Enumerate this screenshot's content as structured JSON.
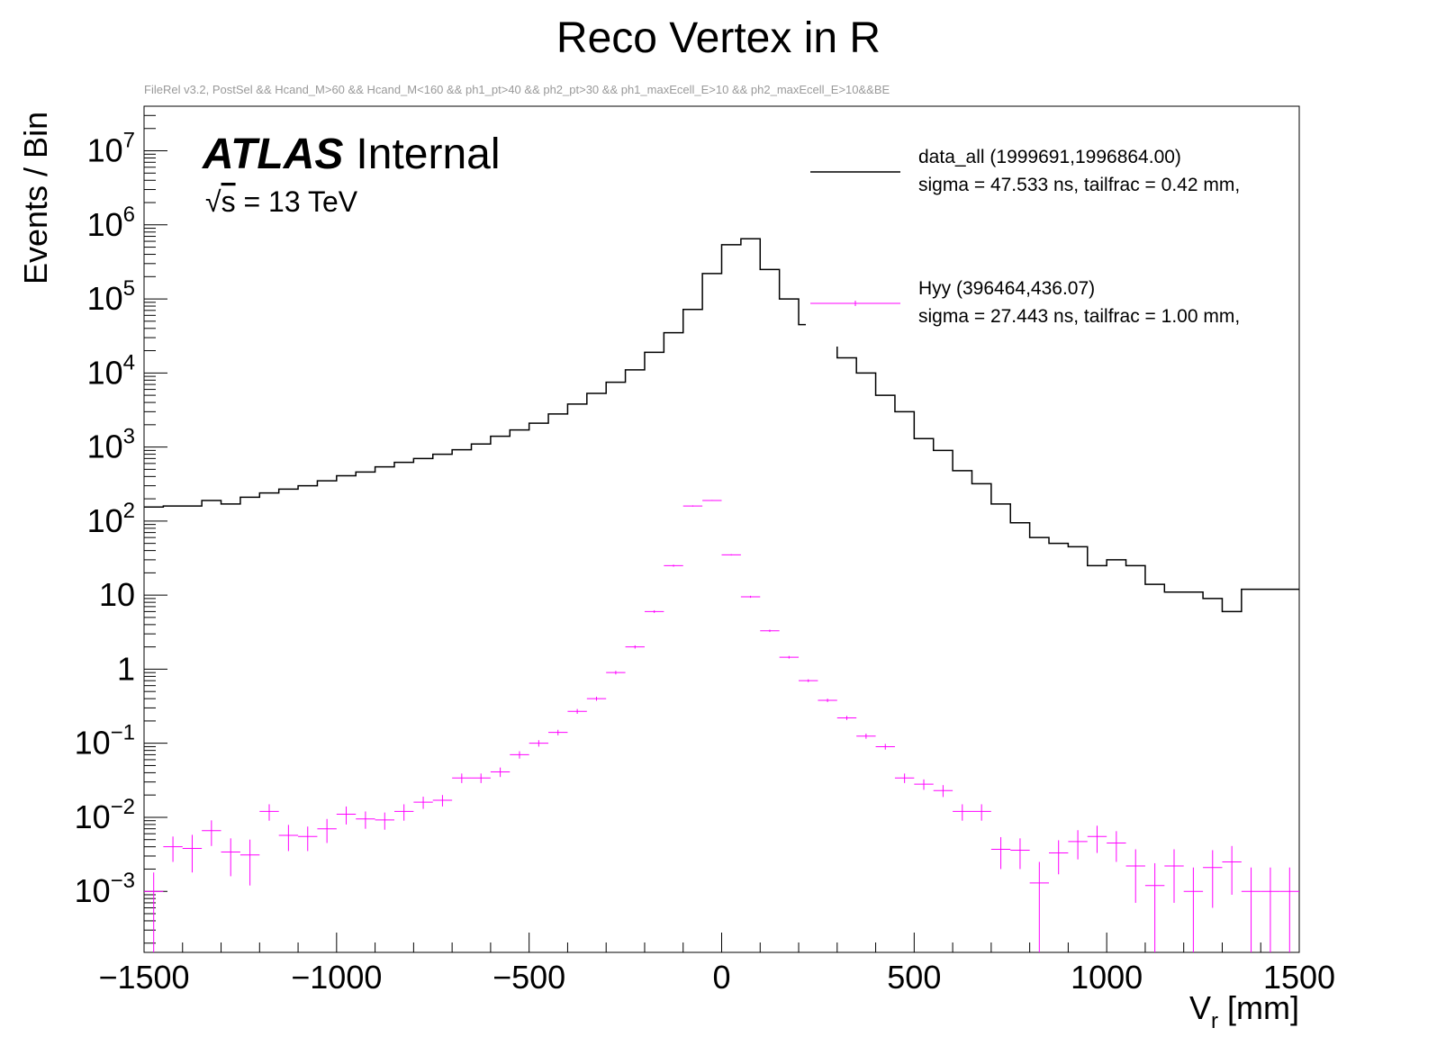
{
  "chart_data": {
    "type": "histogram",
    "title": "Reco Vertex in R",
    "subtitle": "FileRel v3.2, PostSel && Hcand_M>60 && Hcand_M<160 && ph1_pt>40 && ph2_pt>30 && ph1_maxEcell_E>10 && ph2_maxEcell_E>10&&BE",
    "xlabel_main": "V",
    "xlabel_sub": "r",
    "xlabel_unit": " [mm]",
    "ylabel": "Events / Bin",
    "xlim": [
      -1500,
      1500
    ],
    "ylim": [
      0.00015,
      40000000
    ],
    "yscale": "log",
    "x_ticks": [
      -1500,
      -1000,
      -500,
      0,
      500,
      1000,
      1500
    ],
    "x_tick_labels": [
      "−1500",
      "−1000",
      "−500",
      "0",
      "500",
      "1000",
      "1500"
    ],
    "y_ticks": [
      {
        "value": 0.001,
        "base": "10",
        "exp": "−3"
      },
      {
        "value": 0.01,
        "base": "10",
        "exp": "−2"
      },
      {
        "value": 0.1,
        "base": "10",
        "exp": "−1"
      },
      {
        "value": 1,
        "base": "1",
        "exp": ""
      },
      {
        "value": 10,
        "base": "10",
        "exp": ""
      },
      {
        "value": 100,
        "base": "10",
        "exp": "2"
      },
      {
        "value": 1000,
        "base": "10",
        "exp": "3"
      },
      {
        "value": 10000,
        "base": "10",
        "exp": "4"
      },
      {
        "value": 100000,
        "base": "10",
        "exp": "5"
      },
      {
        "value": 1000000,
        "base": "10",
        "exp": "6"
      },
      {
        "value": 10000000,
        "base": "10",
        "exp": "7"
      }
    ],
    "bin_edges_start": -1500,
    "bin_width": 50,
    "series": [
      {
        "name": "data_all",
        "style": "step",
        "color": "#000000",
        "values": [
          155,
          160,
          160,
          190,
          170,
          210,
          240,
          270,
          300,
          350,
          410,
          460,
          540,
          620,
          700,
          800,
          920,
          1100,
          1400,
          1700,
          2100,
          2800,
          3800,
          5300,
          7500,
          11000,
          19000,
          35000,
          72000,
          220000,
          540000,
          650000,
          250000,
          100000,
          45000,
          25000,
          16000,
          10000,
          5000,
          3000,
          1300,
          900,
          480,
          320,
          170,
          95,
          60,
          50,
          45,
          25,
          30,
          25,
          14,
          11,
          11,
          9,
          6,
          12,
          12,
          12
        ]
      },
      {
        "name": "Hyy",
        "style": "errorbar",
        "color": "#ff00ff",
        "values": [
          0.001,
          0.004,
          0.0038,
          0.0066,
          0.0034,
          0.0031,
          0.012,
          0.0057,
          0.0055,
          0.007,
          0.011,
          0.0095,
          0.0092,
          0.012,
          0.016,
          0.017,
          0.034,
          0.034,
          0.041,
          0.07,
          0.1,
          0.14,
          0.27,
          0.4,
          0.9,
          2.0,
          6.0,
          25,
          160,
          190,
          35,
          9.5,
          3.3,
          1.45,
          0.7,
          0.38,
          0.22,
          0.125,
          0.09,
          0.034,
          0.028,
          0.023,
          0.012,
          0.012,
          0.0037,
          0.0036,
          0.0013,
          0.0033,
          0.0047,
          0.0055,
          0.0045,
          0.0022,
          0.0012,
          0.0022,
          0.001,
          0.0021,
          0.0025,
          0.001,
          0.001,
          0.001
        ],
        "err_hi": [
          0.0008,
          0.0015,
          0.002,
          0.0025,
          0.0018,
          0.0019,
          0.003,
          0.0022,
          0.002,
          0.0025,
          0.003,
          0.0025,
          0.0024,
          0.003,
          0.003,
          0.003,
          0.005,
          0.005,
          0.006,
          0.008,
          0.01,
          0.012,
          0.02,
          0.025,
          0.05,
          0.1,
          0.25,
          0.8,
          3,
          3,
          0.7,
          0.3,
          0.12,
          0.06,
          0.03,
          0.02,
          0.014,
          0.01,
          0.008,
          0.005,
          0.0045,
          0.0042,
          0.003,
          0.003,
          0.0017,
          0.0016,
          0.0012,
          0.0016,
          0.002,
          0.0022,
          0.002,
          0.0015,
          0.0012,
          0.0015,
          0.0011,
          0.0015,
          0.0016,
          0.0011,
          0.0011,
          0.0011
        ],
        "err_lo": [
          0.00095,
          0.0015,
          0.002,
          0.0025,
          0.0018,
          0.0019,
          0.003,
          0.0022,
          0.002,
          0.0025,
          0.003,
          0.0025,
          0.0024,
          0.003,
          0.003,
          0.003,
          0.005,
          0.005,
          0.006,
          0.008,
          0.01,
          0.012,
          0.02,
          0.025,
          0.05,
          0.1,
          0.25,
          0.8,
          3,
          3,
          0.7,
          0.3,
          0.12,
          0.06,
          0.03,
          0.02,
          0.014,
          0.01,
          0.008,
          0.005,
          0.0045,
          0.0042,
          0.003,
          0.003,
          0.0017,
          0.0016,
          0.00125,
          0.0016,
          0.002,
          0.0022,
          0.002,
          0.0015,
          0.00115,
          0.0015,
          0.00095,
          0.0015,
          0.0016,
          0.00095,
          0.00095,
          0.00095
        ]
      }
    ],
    "annotations": {
      "atlas_label": "ATLAS",
      "atlas_status": "Internal",
      "energy_sqrt": "√",
      "energy_s": "s",
      "energy_rest": " = 13 TeV"
    },
    "legend": [
      {
        "line1": "data_all  (1999691,1996864.00)",
        "line2": "sigma = 47.533 ns, tailfrac = 0.42 mm,",
        "color": "#000000"
      },
      {
        "line1": "Hyy  (396464,436.07)",
        "line2": "sigma = 27.443 ns, tailfrac = 1.00 mm,",
        "color": "#ff00ff"
      }
    ],
    "legend_position": "top-right"
  }
}
